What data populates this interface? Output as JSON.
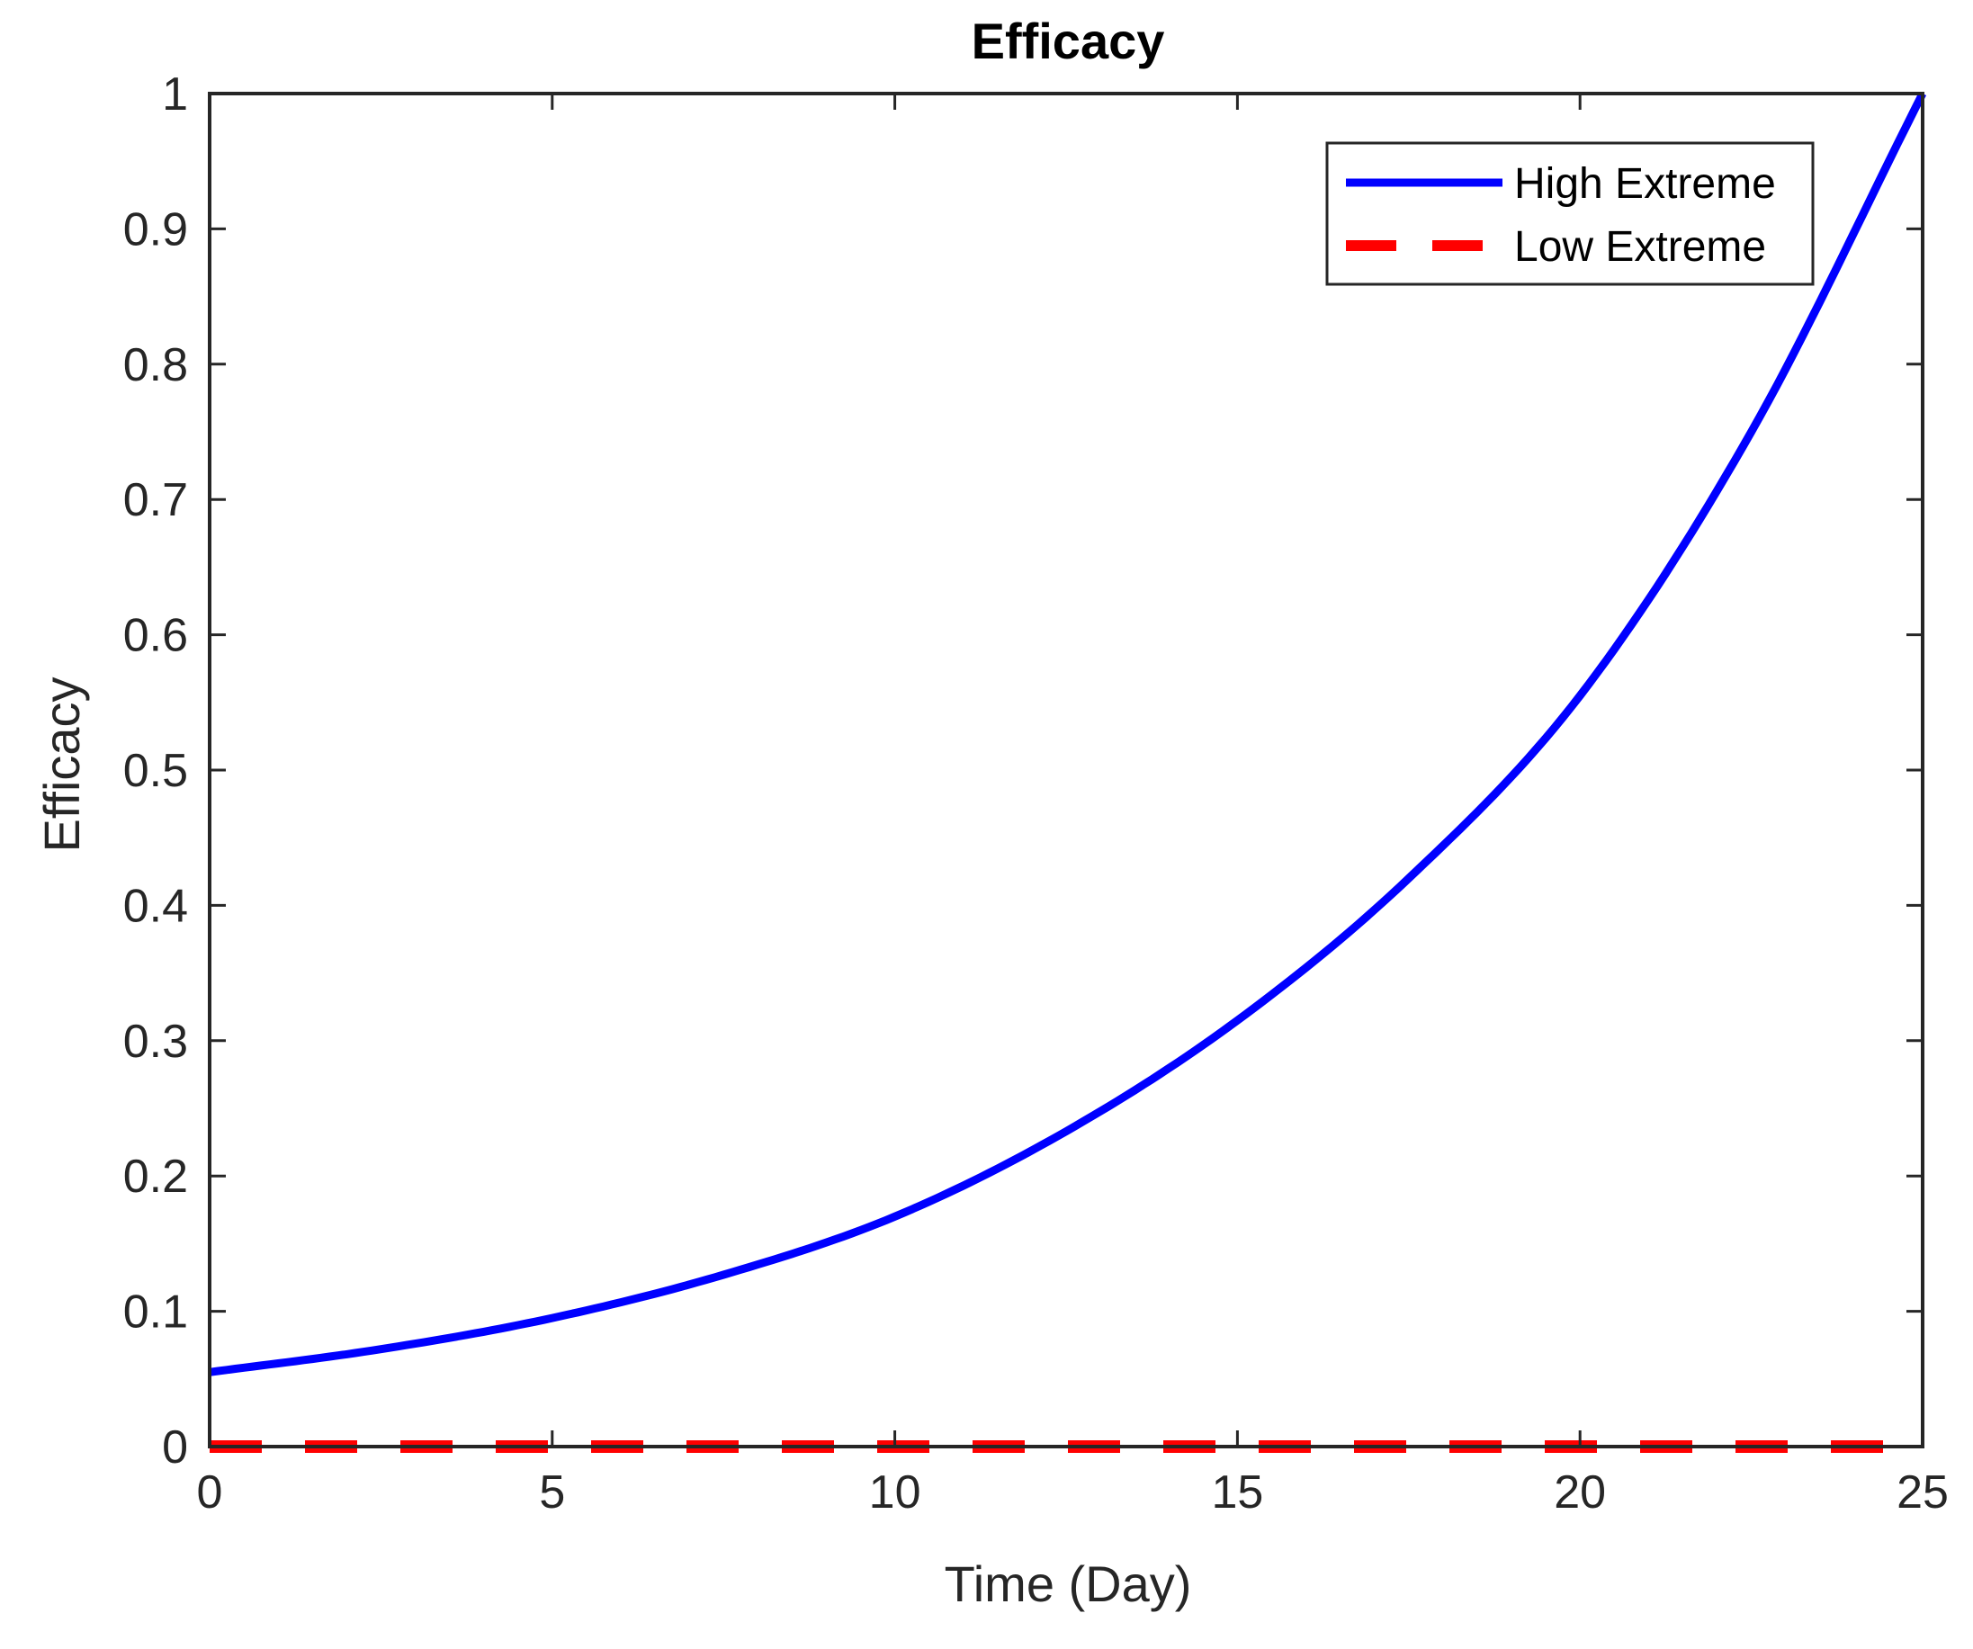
{
  "chart_data": {
    "type": "line",
    "title": "Efficacy",
    "xlabel": "Time (Day)",
    "ylabel": "Efficacy",
    "xlim": [
      0,
      25
    ],
    "ylim": [
      0,
      1
    ],
    "xticks": [
      0,
      5,
      10,
      15,
      20,
      25
    ],
    "yticks": [
      0,
      0.1,
      0.2,
      0.3,
      0.4,
      0.5,
      0.6,
      0.7,
      0.8,
      0.9,
      1
    ],
    "grid": false,
    "legend_position": "top-right",
    "series": [
      {
        "name": "High Extreme",
        "color": "#0000ff",
        "style": "solid",
        "x": [
          0,
          2.5,
          5,
          7.5,
          10,
          12.5,
          15,
          17.5,
          20,
          22.5,
          25
        ],
        "y": [
          0.055,
          0.072,
          0.095,
          0.127,
          0.17,
          0.233,
          0.315,
          0.42,
          0.555,
          0.75,
          1.0
        ]
      },
      {
        "name": "Low Extreme",
        "color": "#ff0000",
        "style": "dashed",
        "x": [
          0,
          25
        ],
        "y": [
          0,
          0
        ]
      }
    ]
  }
}
